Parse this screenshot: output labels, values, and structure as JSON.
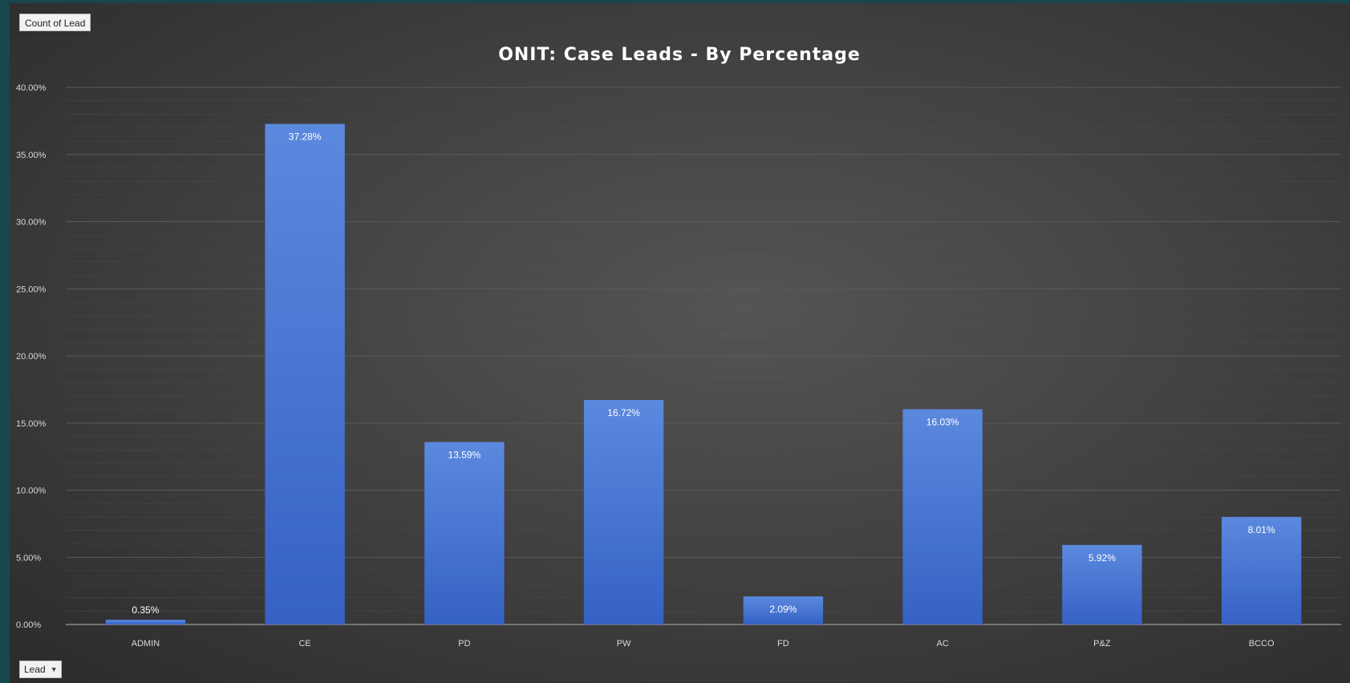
{
  "pivot_controls": {
    "value_field_label": "Count of Lead",
    "axis_field_label": "Lead",
    "axis_field_dropdown_icon": "triangle-down"
  },
  "colors": {
    "bar": "#4a7bd8",
    "bar_top": "#5b89de",
    "bar_bottom": "#3562c4",
    "background": "#3e3e3e",
    "text": "#ffffff",
    "axis_text": "#d9d9d9",
    "gridline": "#555555"
  },
  "chart_data": {
    "type": "bar",
    "title": "ONIT: Case Leads - By Percentage",
    "xlabel": "",
    "ylabel": "",
    "categories": [
      "ADMIN",
      "CE",
      "PD",
      "PW",
      "FD",
      "AC",
      "P&Z",
      "BCCO"
    ],
    "values": [
      0.35,
      37.28,
      13.59,
      16.72,
      2.09,
      16.03,
      5.92,
      8.01
    ],
    "data_labels": [
      "0.35%",
      "37.28%",
      "13.59%",
      "16.72%",
      "2.09%",
      "16.03%",
      "5.92%",
      "8.01%"
    ],
    "ylim": [
      0,
      40
    ],
    "yticks": [
      0,
      5,
      10,
      15,
      20,
      25,
      30,
      35,
      40
    ],
    "ytick_labels": [
      "0.00%",
      "5.00%",
      "10.00%",
      "15.00%",
      "20.00%",
      "25.00%",
      "30.00%",
      "35.00%",
      "40.00%"
    ],
    "grid": true,
    "legend": "none"
  }
}
